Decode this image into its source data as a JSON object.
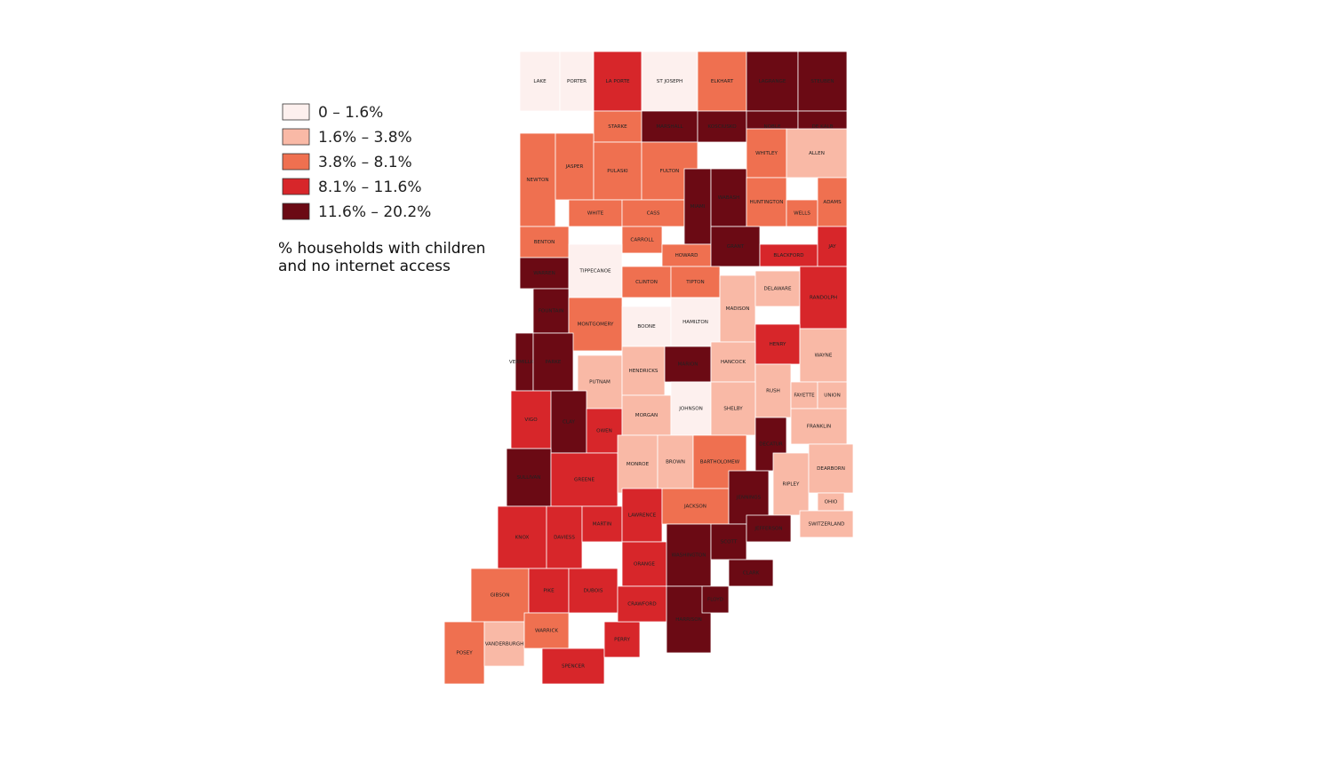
{
  "legend": {
    "items": [
      {
        "label": "0 – 1.6%",
        "color": "#fdf0ee"
      },
      {
        "label": "1.6% – 3.8%",
        "color": "#f9b9a6"
      },
      {
        "label": "3.8% – 8.1%",
        "color": "#ef7050"
      },
      {
        "label": "8.1% – 11.6%",
        "color": "#d7262a"
      },
      {
        "label": "11.6% – 20.2%",
        "color": "#6b0a14"
      }
    ],
    "title_lines": [
      "% households with children",
      "and no internet access"
    ]
  },
  "counties": [
    {
      "name": "LAKE",
      "color": "#fdf0ee"
    },
    {
      "name": "PORTER",
      "color": "#fdf0ee"
    },
    {
      "name": "LA PORTE",
      "color": "#d7262a"
    },
    {
      "name": "ST JOSEPH",
      "color": "#fdf0ee"
    },
    {
      "name": "ELKHART",
      "color": "#ef7050"
    },
    {
      "name": "LAGRANGE",
      "color": "#6b0a14"
    },
    {
      "name": "STEUBEN",
      "color": "#6b0a14"
    },
    {
      "name": "STARKE",
      "color": "#ef7050"
    },
    {
      "name": "MARSHALL",
      "color": "#6b0a14"
    },
    {
      "name": "KOSCIUSKO",
      "color": "#6b0a14"
    },
    {
      "name": "NOBLE",
      "color": "#6b0a14"
    },
    {
      "name": "DE KALB",
      "color": "#6b0a14"
    },
    {
      "name": "NEWTON",
      "color": "#ef7050"
    },
    {
      "name": "JASPER",
      "color": "#ef7050"
    },
    {
      "name": "PULASKI",
      "color": "#ef7050"
    },
    {
      "name": "FULTON",
      "color": "#ef7050"
    },
    {
      "name": "WHITLEY",
      "color": "#ef7050"
    },
    {
      "name": "ALLEN",
      "color": "#f9b9a6"
    },
    {
      "name": "BENTON",
      "color": "#ef7050"
    },
    {
      "name": "WHITE",
      "color": "#ef7050"
    },
    {
      "name": "CASS",
      "color": "#ef7050"
    },
    {
      "name": "MIAMI",
      "color": "#6b0a14"
    },
    {
      "name": "WABASH",
      "color": "#6b0a14"
    },
    {
      "name": "HUNTINGTON",
      "color": "#ef7050"
    },
    {
      "name": "WELLS",
      "color": "#ef7050"
    },
    {
      "name": "ADAMS",
      "color": "#ef7050"
    },
    {
      "name": "CARROLL",
      "color": "#ef7050"
    },
    {
      "name": "HOWARD",
      "color": "#ef7050"
    },
    {
      "name": "GRANT",
      "color": "#6b0a14"
    },
    {
      "name": "BLACKFORD",
      "color": "#d7262a"
    },
    {
      "name": "JAY",
      "color": "#d7262a"
    },
    {
      "name": "WARREN",
      "color": "#6b0a14"
    },
    {
      "name": "TIPPECANOE",
      "color": "#fdf0ee"
    },
    {
      "name": "CLINTON",
      "color": "#ef7050"
    },
    {
      "name": "TIPTON",
      "color": "#ef7050"
    },
    {
      "name": "MADISON",
      "color": "#f9b9a6"
    },
    {
      "name": "DELAWARE",
      "color": "#f9b9a6"
    },
    {
      "name": "RANDOLPH",
      "color": "#d7262a"
    },
    {
      "name": "FOUNTAIN",
      "color": "#6b0a14"
    },
    {
      "name": "MONTGOMERY",
      "color": "#ef7050"
    },
    {
      "name": "BOONE",
      "color": "#fdf0ee"
    },
    {
      "name": "HAMILTON",
      "color": "#fdf0ee"
    },
    {
      "name": "HENRY",
      "color": "#d7262a"
    },
    {
      "name": "WAYNE",
      "color": "#f9b9a6"
    },
    {
      "name": "VERMILLION",
      "color": "#6b0a14"
    },
    {
      "name": "PARKE",
      "color": "#6b0a14"
    },
    {
      "name": "PUTNAM",
      "color": "#f9b9a6"
    },
    {
      "name": "HENDRICKS",
      "color": "#f9b9a6"
    },
    {
      "name": "MARION",
      "color": "#6b0a14"
    },
    {
      "name": "HANCOCK",
      "color": "#f9b9a6"
    },
    {
      "name": "RUSH",
      "color": "#f9b9a6"
    },
    {
      "name": "FAYETTE",
      "color": "#f9b9a6"
    },
    {
      "name": "UNION",
      "color": "#f9b9a6"
    },
    {
      "name": "VIGO",
      "color": "#d7262a"
    },
    {
      "name": "CLAY",
      "color": "#6b0a14"
    },
    {
      "name": "OWEN",
      "color": "#d7262a"
    },
    {
      "name": "MORGAN",
      "color": "#f9b9a6"
    },
    {
      "name": "JOHNSON",
      "color": "#fdf0ee"
    },
    {
      "name": "SHELBY",
      "color": "#f9b9a6"
    },
    {
      "name": "DECATUR",
      "color": "#6b0a14"
    },
    {
      "name": "FRANKLIN",
      "color": "#f9b9a6"
    },
    {
      "name": "SULLIVAN",
      "color": "#6b0a14"
    },
    {
      "name": "GREENE",
      "color": "#d7262a"
    },
    {
      "name": "MONROE",
      "color": "#f9b9a6"
    },
    {
      "name": "BROWN",
      "color": "#f9b9a6"
    },
    {
      "name": "BARTHOLOMEW",
      "color": "#ef7050"
    },
    {
      "name": "RIPLEY",
      "color": "#f9b9a6"
    },
    {
      "name": "DEARBORN",
      "color": "#f9b9a6"
    },
    {
      "name": "KNOX",
      "color": "#d7262a"
    },
    {
      "name": "DAVIESS",
      "color": "#d7262a"
    },
    {
      "name": "MARTIN",
      "color": "#d7262a"
    },
    {
      "name": "LAWRENCE",
      "color": "#d7262a"
    },
    {
      "name": "JACKSON",
      "color": "#ef7050"
    },
    {
      "name": "JENNINGS",
      "color": "#6b0a14"
    },
    {
      "name": "OHIO",
      "color": "#f9b9a6"
    },
    {
      "name": "SWITZERLAND",
      "color": "#f9b9a6"
    },
    {
      "name": "GIBSON",
      "color": "#ef7050"
    },
    {
      "name": "PIKE",
      "color": "#d7262a"
    },
    {
      "name": "DUBOIS",
      "color": "#d7262a"
    },
    {
      "name": "ORANGE",
      "color": "#d7262a"
    },
    {
      "name": "WASHINGTON",
      "color": "#6b0a14"
    },
    {
      "name": "SCOTT",
      "color": "#6b0a14"
    },
    {
      "name": "JEFFERSON",
      "color": "#6b0a14"
    },
    {
      "name": "POSEY",
      "color": "#ef7050"
    },
    {
      "name": "VANDERBURGH",
      "color": "#f9b9a6"
    },
    {
      "name": "WARRICK",
      "color": "#ef7050"
    },
    {
      "name": "SPENCER",
      "color": "#d7262a"
    },
    {
      "name": "PERRY",
      "color": "#d7262a"
    },
    {
      "name": "CRAWFORD",
      "color": "#d7262a"
    },
    {
      "name": "HARRISON",
      "color": "#6b0a14"
    },
    {
      "name": "FLOYD",
      "color": "#6b0a14"
    },
    {
      "name": "CLARK",
      "color": "#6b0a14"
    }
  ]
}
